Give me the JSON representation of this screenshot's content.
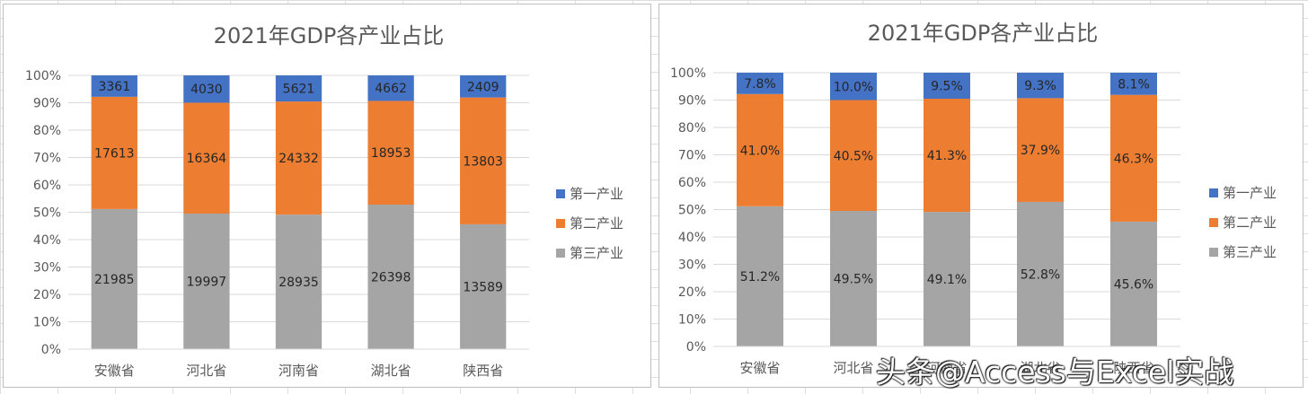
{
  "colors": {
    "primary": "#4472C4",
    "secondary": "#ED7D31",
    "tertiary": "#A5A5A5"
  },
  "watermark": "头条@Access与Excel实战",
  "chart_data": [
    {
      "type": "bar",
      "stacked": "percent",
      "title": "2021年GDP各产业占比",
      "categories": [
        "安徽省",
        "河北省",
        "河南省",
        "湖北省",
        "陕西省"
      ],
      "y_ticks": [
        "0%",
        "10%",
        "20%",
        "30%",
        "40%",
        "50%",
        "60%",
        "70%",
        "80%",
        "90%",
        "100%"
      ],
      "ylim": [
        0,
        100
      ],
      "grid": true,
      "legend_position": "right",
      "series": [
        {
          "name": "第一产业",
          "values": [
            3361,
            4030,
            5621,
            4662,
            2409
          ],
          "labels": [
            "3361",
            "4030",
            "5621",
            "4662",
            "2409"
          ]
        },
        {
          "name": "第二产业",
          "values": [
            17613,
            16364,
            24332,
            18953,
            13803
          ],
          "labels": [
            "17613",
            "16364",
            "24332",
            "18953",
            "13803"
          ]
        },
        {
          "name": "第三产业",
          "values": [
            21985,
            19997,
            28935,
            26398,
            13589
          ],
          "labels": [
            "21985",
            "19997",
            "28935",
            "26398",
            "13589"
          ]
        }
      ]
    },
    {
      "type": "bar",
      "stacked": "percent",
      "title": "2021年GDP各产业占比",
      "categories": [
        "安徽省",
        "河北省",
        "河南省",
        "湖北省",
        "陕西省"
      ],
      "y_ticks": [
        "0%",
        "10%",
        "20%",
        "30%",
        "40%",
        "50%",
        "60%",
        "70%",
        "80%",
        "90%",
        "100%"
      ],
      "ylim": [
        0,
        100
      ],
      "grid": true,
      "legend_position": "right",
      "series": [
        {
          "name": "第一产业",
          "values": [
            7.8,
            10.0,
            9.5,
            9.3,
            8.1
          ],
          "labels": [
            "7.8%",
            "10.0%",
            "9.5%",
            "9.3%",
            "8.1%"
          ]
        },
        {
          "name": "第二产业",
          "values": [
            41.0,
            40.5,
            41.3,
            37.9,
            46.3
          ],
          "labels": [
            "41.0%",
            "40.5%",
            "41.3%",
            "37.9%",
            "46.3%"
          ]
        },
        {
          "name": "第三产业",
          "values": [
            51.2,
            49.5,
            49.1,
            52.8,
            45.6
          ],
          "labels": [
            "51.2%",
            "49.5%",
            "49.1%",
            "52.8%",
            "45.6%"
          ]
        }
      ]
    }
  ]
}
